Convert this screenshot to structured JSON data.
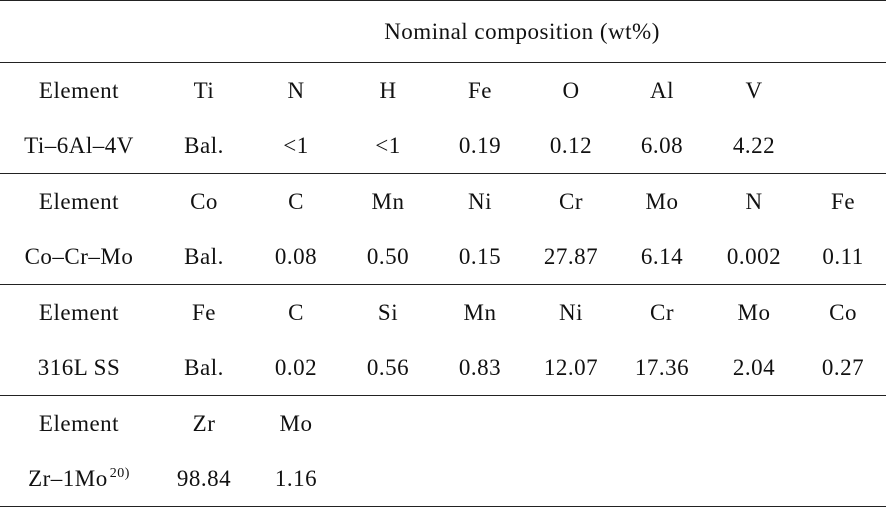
{
  "table": {
    "title": "Nominal composition (wt%)",
    "sections": [
      {
        "rows": [
          [
            "Element",
            "Ti",
            "N",
            "H",
            "Fe",
            "O",
            "Al",
            "V",
            ""
          ],
          [
            "Ti–6Al–4V",
            "Bal.",
            "<1",
            "<1",
            "0.19",
            "0.12",
            "6.08",
            "4.22",
            ""
          ]
        ]
      },
      {
        "rows": [
          [
            "Element",
            "Co",
            "C",
            "Mn",
            "Ni",
            "Cr",
            "Mo",
            "N",
            "Fe"
          ],
          [
            "Co–Cr–Mo",
            "Bal.",
            "0.08",
            "0.50",
            "0.15",
            "27.87",
            "6.14",
            "0.002",
            "0.11"
          ]
        ]
      },
      {
        "rows": [
          [
            "Element",
            "Fe",
            "C",
            "Si",
            "Mn",
            "Ni",
            "Cr",
            "Mo",
            "Co"
          ],
          [
            "316L SS",
            "Bal.",
            "0.02",
            "0.56",
            "0.83",
            "12.07",
            "17.36",
            "2.04",
            "0.27"
          ]
        ]
      },
      {
        "rows": [
          [
            "Element",
            "Zr",
            "Mo",
            "",
            "",
            "",
            "",
            "",
            ""
          ],
          [
            "Zr–1Mo",
            "98.84",
            "1.16",
            "",
            "",
            "",
            "",
            "",
            ""
          ]
        ]
      }
    ],
    "footnote_ref": "20)"
  }
}
